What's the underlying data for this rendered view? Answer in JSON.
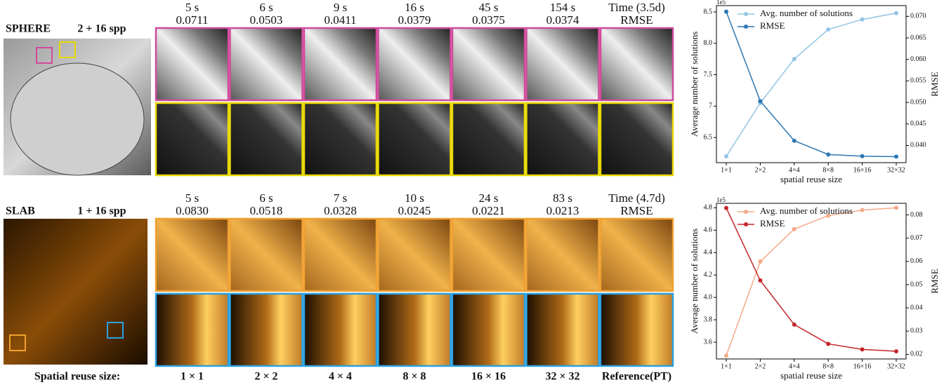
{
  "rows": [
    {
      "name": "SPHERE",
      "spp": "2 + 16 spp",
      "times": [
        "5 s",
        "6 s",
        "9 s",
        "16 s",
        "45 s",
        "154 s",
        "Time (3.5d)"
      ],
      "rmse": [
        "0.0711",
        "0.0503",
        "0.0411",
        "0.0379",
        "0.0375",
        "0.0374",
        "RMSE"
      ]
    },
    {
      "name": "SLAB",
      "spp": "1 + 16 spp",
      "times": [
        "5 s",
        "6 s",
        "7 s",
        "10 s",
        "24 s",
        "83 s",
        "Time (4.7d)"
      ],
      "rmse": [
        "0.0830",
        "0.0518",
        "0.0328",
        "0.0245",
        "0.0221",
        "0.0213",
        "RMSE"
      ]
    }
  ],
  "footer": {
    "label": "Spatial reuse size:",
    "sizes": [
      "1 × 1",
      "2 × 2",
      "4 × 4",
      "8 × 8",
      "16 × 16",
      "32 × 32",
      "Reference(PT)"
    ]
  },
  "chart_data": [
    {
      "type": "line",
      "categories": [
        "1×1",
        "2×2",
        "4×4",
        "8×8",
        "16×16",
        "32×32"
      ],
      "xlabel": "spatial reuse size",
      "ylabel": "Average number of solutions",
      "y2label": "RMSE",
      "y_offset_label": "1e5",
      "series": [
        {
          "name": "Avg. number of solutions",
          "color": "#92c5e3",
          "values": [
            6.2,
            7.05,
            7.75,
            8.22,
            8.38,
            8.48
          ]
        },
        {
          "name": "RMSE",
          "color": "#2b77b4",
          "axis": "y2",
          "values": [
            0.0711,
            0.0503,
            0.0411,
            0.0379,
            0.0375,
            0.0374
          ]
        }
      ],
      "ylim": [
        6.1,
        8.6
      ],
      "yticks": [
        6.5,
        7.0,
        {
          "value": 7.5,
          "label": "7.5"
        },
        {
          "value": 8,
          "label": "8.0"
        },
        8.5
      ],
      "y2lim": [
        0.036,
        0.0725
      ],
      "y2ticks": [
        {
          "value": 0.04,
          "label": "0.040"
        },
        {
          "value": 0.045,
          "label": "0.045"
        },
        {
          "value": 0.05,
          "label": "0.050"
        },
        {
          "value": 0.055,
          "label": "0.055"
        },
        {
          "value": 0.06,
          "label": "0.060"
        },
        {
          "value": 0.065,
          "label": "0.065"
        },
        {
          "value": 0.07,
          "label": "0.070"
        }
      ],
      "legend": "upper left"
    },
    {
      "type": "line",
      "categories": [
        "1×1",
        "2×2",
        "4×4",
        "8×8",
        "16×16",
        "32×32"
      ],
      "xlabel": "spatial reuse size",
      "ylabel": "Average number of solutions",
      "y2label": "RMSE",
      "y_offset_label": "1e5",
      "series": [
        {
          "name": "Avg. number of solutions",
          "color": "#f4a886",
          "values": [
            3.48,
            4.32,
            4.61,
            4.73,
            4.78,
            4.8
          ]
        },
        {
          "name": "RMSE",
          "color": "#c3262a",
          "axis": "y2",
          "values": [
            0.083,
            0.0518,
            0.0328,
            0.0245,
            0.0221,
            0.0213
          ]
        }
      ],
      "ylim": [
        3.45,
        4.84
      ],
      "yticks": [
        3.6,
        3.8,
        {
          "value": 4,
          "label": "4.0"
        },
        4.2,
        4.4,
        4.6,
        4.8
      ],
      "y2lim": [
        0.018,
        0.085
      ],
      "y2ticks": [
        {
          "value": 0.02,
          "label": "0.02"
        },
        {
          "value": 0.03,
          "label": "0.03"
        },
        {
          "value": 0.04,
          "label": "0.04"
        },
        {
          "value": 0.05,
          "label": "0.05"
        },
        {
          "value": 0.06,
          "label": "0.06"
        },
        {
          "value": 0.07,
          "label": "0.07"
        },
        {
          "value": 0.08,
          "label": "0.08"
        }
      ],
      "legend": "upper left"
    }
  ]
}
